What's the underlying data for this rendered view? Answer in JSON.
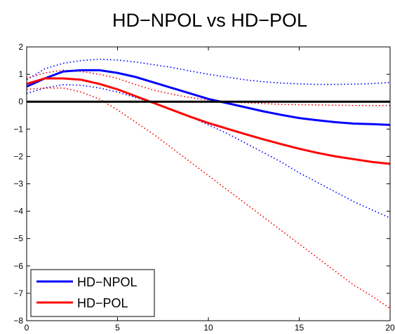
{
  "chart_data": {
    "type": "line",
    "title": "HD−NPOL vs HD−POL",
    "xlabel": "",
    "ylabel": "",
    "xlim": [
      0,
      20
    ],
    "ylim": [
      -8,
      2
    ],
    "xticks": [
      0,
      5,
      10,
      15,
      20
    ],
    "yticks": [
      -8,
      -7,
      -6,
      -5,
      -4,
      -3,
      -2,
      -1,
      0,
      1,
      2
    ],
    "x": [
      0,
      1,
      2,
      3,
      4,
      5,
      6,
      7,
      8,
      9,
      10,
      11,
      12,
      13,
      14,
      15,
      16,
      17,
      18,
      19,
      20
    ],
    "zero_line": 0,
    "grid": false,
    "legend_position": "bottom-left",
    "series": [
      {
        "name": "HD−NPOL",
        "color": "#0000ff",
        "style": "solid",
        "values": [
          0.55,
          0.85,
          1.1,
          1.15,
          1.15,
          1.05,
          0.9,
          0.7,
          0.5,
          0.3,
          0.1,
          -0.05,
          -0.2,
          -0.35,
          -0.48,
          -0.6,
          -0.68,
          -0.75,
          -0.8,
          -0.82,
          -0.85
        ],
        "band_upper": [
          0.8,
          1.2,
          1.4,
          1.5,
          1.55,
          1.52,
          1.45,
          1.35,
          1.25,
          1.12,
          1.0,
          0.9,
          0.8,
          0.73,
          0.68,
          0.65,
          0.63,
          0.63,
          0.64,
          0.66,
          0.7
        ],
        "band_lower": [
          0.3,
          0.5,
          0.62,
          0.6,
          0.5,
          0.35,
          0.15,
          -0.05,
          -0.3,
          -0.55,
          -0.85,
          -1.15,
          -1.5,
          -1.85,
          -2.2,
          -2.6,
          -2.95,
          -3.3,
          -3.65,
          -3.95,
          -4.25
        ]
      },
      {
        "name": "HD−POL",
        "color": "#ff0000",
        "style": "solid",
        "values": [
          0.65,
          0.85,
          0.85,
          0.8,
          0.65,
          0.45,
          0.2,
          -0.05,
          -0.3,
          -0.55,
          -0.78,
          -0.98,
          -1.18,
          -1.37,
          -1.55,
          -1.72,
          -1.87,
          -2.0,
          -2.1,
          -2.2,
          -2.27
        ],
        "band_upper": [
          0.85,
          1.05,
          1.15,
          1.1,
          1.0,
          0.85,
          0.62,
          0.42,
          0.27,
          0.15,
          0.06,
          0.0,
          -0.04,
          -0.07,
          -0.1,
          -0.11,
          -0.12,
          -0.13,
          -0.14,
          -0.14,
          -0.14
        ],
        "band_lower": [
          0.45,
          0.5,
          0.5,
          0.35,
          0.1,
          -0.3,
          -0.75,
          -1.2,
          -1.7,
          -2.2,
          -2.7,
          -3.2,
          -3.7,
          -4.2,
          -4.7,
          -5.2,
          -5.7,
          -6.2,
          -6.7,
          -7.1,
          -7.55
        ]
      }
    ]
  }
}
